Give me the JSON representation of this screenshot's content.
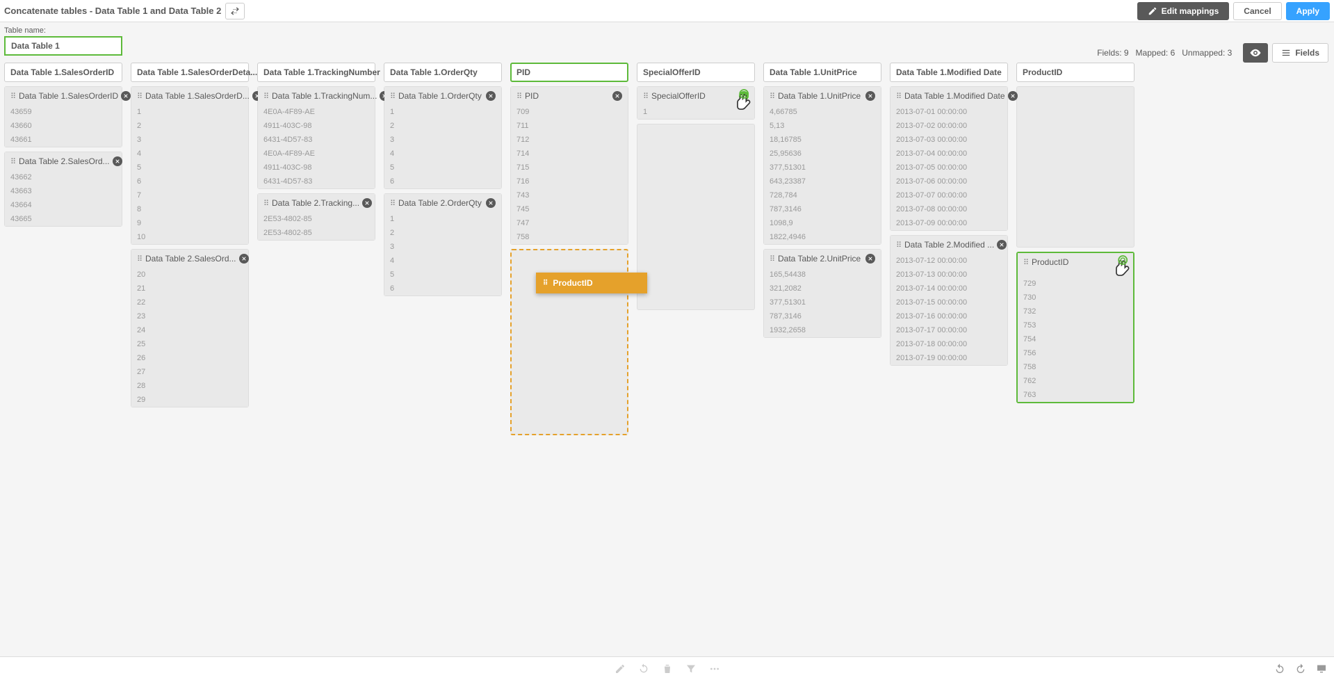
{
  "title": "Concatenate tables - Data Table 1 and Data Table 2",
  "buttons": {
    "edit_mappings": "Edit mappings",
    "cancel": "Cancel",
    "apply": "Apply",
    "fields": "Fields"
  },
  "table_name_label": "Table name:",
  "table_name_value": "Data Table 1",
  "meta": {
    "fields": "Fields: 9",
    "mapped": "Mapped: 6",
    "unmapped": "Unmapped: 3"
  },
  "drag_chip_label": "ProductID",
  "columns": [
    {
      "header": "Data Table 1.SalesOrderID",
      "src1": {
        "label": "Data Table 1.SalesOrderID",
        "values": [
          "43659",
          "43660",
          "43661"
        ]
      },
      "src2": {
        "label": "Data Table 2.SalesOrd...",
        "values": [
          "43662",
          "43663",
          "43664",
          "43665"
        ]
      }
    },
    {
      "header": "Data Table 1.SalesOrderDeta...",
      "src1": {
        "label": "Data Table 1.SalesOrderD...",
        "values": [
          "1",
          "2",
          "3",
          "4",
          "5",
          "6",
          "7",
          "8",
          "9",
          "10"
        ]
      },
      "src2": {
        "label": "Data Table 2.SalesOrd...",
        "values": [
          "20",
          "21",
          "22",
          "23",
          "24",
          "25",
          "26",
          "27",
          "28",
          "29"
        ]
      }
    },
    {
      "header": "Data Table 1.TrackingNumber",
      "src1": {
        "label": "Data Table 1.TrackingNum...",
        "values": [
          "4E0A-4F89-AE",
          "4911-403C-98",
          "6431-4D57-83",
          "4E0A-4F89-AE",
          "4911-403C-98",
          "6431-4D57-83"
        ]
      },
      "src2": {
        "label": "Data Table 2.Tracking...",
        "values": [
          "2E53-4802-85",
          "2E53-4802-85"
        ]
      }
    },
    {
      "header": "Data Table 1.OrderQty",
      "src1": {
        "label": "Data Table 1.OrderQty",
        "values": [
          "1",
          "2",
          "3",
          "4",
          "5",
          "6"
        ]
      },
      "src2": {
        "label": "Data Table 2.OrderQty",
        "values": [
          "1",
          "2",
          "3",
          "4",
          "5",
          "6"
        ]
      }
    },
    {
      "header": "PID",
      "highlight": true,
      "src1": {
        "label": "PID",
        "values": [
          "709",
          "711",
          "712",
          "714",
          "715",
          "716",
          "743",
          "745",
          "747",
          "758"
        ]
      },
      "src2": "dropzone"
    },
    {
      "header": "SpecialOfferID",
      "src1": {
        "label": "SpecialOfferID",
        "clear_color": "green",
        "show_hand": true,
        "values": [
          "1"
        ]
      },
      "src2": "empty"
    },
    {
      "header": "Data Table 1.UnitPrice",
      "src1": {
        "label": "Data Table 1.UnitPrice",
        "values": [
          "4,66785",
          "5,13",
          "18,16785",
          "25,95636",
          "377,51301",
          "643,23387",
          "728,784",
          "787,3146",
          "1098,9",
          "1822,4946"
        ]
      },
      "src2": {
        "label": "Data Table 2.UnitPrice",
        "values": [
          "165,54438",
          "321,2082",
          "377,51301",
          "787,3146",
          "1932,2658"
        ]
      }
    },
    {
      "header": "Data Table 1.Modified Date",
      "src1": {
        "label": "Data Table 1.Modified Date",
        "values": [
          "2013-07-01 00:00:00",
          "2013-07-02 00:00:00",
          "2013-07-03 00:00:00",
          "2013-07-04 00:00:00",
          "2013-07-05 00:00:00",
          "2013-07-06 00:00:00",
          "2013-07-07 00:00:00",
          "2013-07-08 00:00:00",
          "2013-07-09 00:00:00"
        ]
      },
      "src2": {
        "label": "Data Table 2.Modified ...",
        "values": [
          "2013-07-12 00:00:00",
          "2013-07-13 00:00:00",
          "2013-07-14 00:00:00",
          "2013-07-15 00:00:00",
          "2013-07-16 00:00:00",
          "2013-07-17 00:00:00",
          "2013-07-18 00:00:00",
          "2013-07-19 00:00:00"
        ]
      }
    },
    {
      "header": "ProductID",
      "src1": "empty",
      "src2": {
        "label": "ProductID",
        "highlight": true,
        "show_hand": true,
        "no_clear": true,
        "values": [
          "",
          "729",
          "730",
          "732",
          "753",
          "754",
          "756",
          "758",
          "762",
          "763"
        ]
      }
    }
  ]
}
